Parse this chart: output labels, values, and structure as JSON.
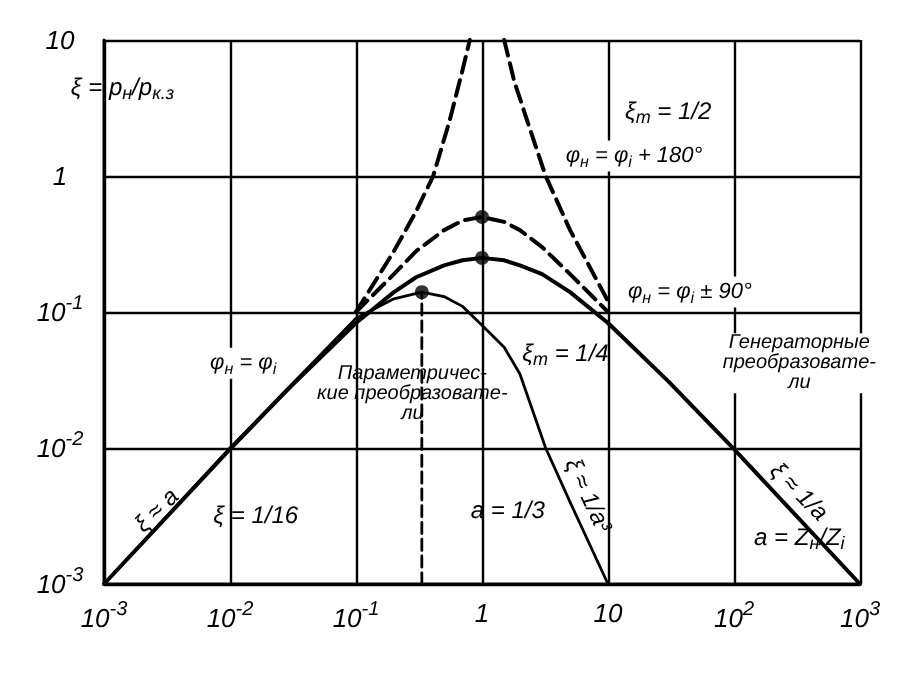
{
  "chart_data": {
    "type": "line",
    "log": "xy",
    "grid": true,
    "legend": false,
    "marker": "none",
    "xlim": [
      0.001,
      1000
    ],
    "ylim": [
      0.001,
      10
    ],
    "xticks": [
      {
        "value": 0.001,
        "label": "10$^{-3}$"
      },
      {
        "value": 0.01,
        "label": "10$^{-2}$"
      },
      {
        "value": 0.1,
        "label": "10$^{-1}$"
      },
      1,
      10,
      {
        "value": 100,
        "label": "10$^{2}$"
      },
      {
        "value": 1000,
        "label": "10$^{3}$"
      }
    ],
    "yticks": [
      {
        "value": 0.001,
        "label": "10$^{-3}$"
      },
      {
        "value": 0.01,
        "label": "10$^{-2}$"
      },
      {
        "value": 0.1,
        "label": "10$^{-1}$"
      },
      1,
      10
    ],
    "series": [
      {
        "name": "φ$_{н}$ = φ$_{i}$",
        "type": "line",
        "color": "#000000",
        "line_style": "solid",
        "x": [
          0.001,
          0.01,
          0.03,
          0.1,
          0.2,
          0.3,
          0.5,
          0.7,
          1,
          1.5,
          2,
          3,
          5,
          10,
          30,
          100,
          1000
        ],
        "values": [
          0.001,
          0.0098,
          0.028,
          0.083,
          0.14,
          0.18,
          0.22,
          0.24,
          0.25,
          0.24,
          0.22,
          0.19,
          0.14,
          0.083,
          0.031,
          0.0098,
          0.001
        ]
      },
      {
        "name": "φ$_{н}$ = φ$_{i}$ ± 90°",
        "type": "line",
        "color": "#000000",
        "line_style": "dashed",
        "x": [
          0.1,
          0.2,
          0.3,
          0.5,
          0.7,
          1,
          1.5,
          2,
          3,
          5,
          10
        ],
        "values": [
          0.1,
          0.19,
          0.28,
          0.4,
          0.47,
          0.5,
          0.46,
          0.4,
          0.3,
          0.19,
          0.1
        ]
      },
      {
        "name": "φ$_{н}$ = φ$_{i}$ + 180°",
        "type": "line",
        "color": "#000000",
        "line_style": "dashed",
        "x": [
          0.1,
          0.2,
          0.3,
          0.41,
          0.55,
          0.7,
          0.8,
          1,
          1.5,
          1.8,
          2.3,
          3.2,
          5,
          10
        ],
        "values": [
          0.1,
          0.28,
          0.55,
          1,
          2.5,
          6,
          10,
          null,
          10,
          5,
          2.5,
          1,
          0.4,
          0.12
        ]
      },
      {
        "type": "line",
        "color": "#000000",
        "line_style": "solid",
        "x": [
          0.001,
          0.01,
          0.1,
          0.2,
          0.333,
          0.5,
          0.7,
          1,
          1.5,
          2,
          3.2,
          5,
          10
        ],
        "values": [
          0.001,
          0.01,
          0.09,
          0.125,
          0.14,
          0.13,
          0.11,
          0.08,
          0.055,
          0.035,
          0.01,
          0.004,
          0.001
        ]
      },
      {
        "type": "line",
        "color": "#000000",
        "line_style": "dashed",
        "x": [
          0.333,
          0.333
        ],
        "values": [
          0.001,
          0.14
        ]
      },
      {
        "type": "scatter",
        "color": "#000000",
        "marker": "circle",
        "x": [
          0.333,
          1,
          1
        ],
        "values": [
          0.14,
          0.25,
          0.5
        ]
      }
    ],
    "annotations": [
      "ξ = p$_{н}$/p$_{к.з}$",
      "ξ$_{m}$ = 1/2",
      "ξ$_{m}$ = 1/4",
      "Параметричес-\nкие преобразовате-\nли",
      "Генераторные\nпреобразовате-\nли",
      "ξ ≈ a",
      "ξ = 1/16",
      "a = 1/3",
      "ξ ≈ 1/a³",
      "ξ ≈ 1/a",
      "a = Z$_{н}$/Z$_{i}$"
    ]
  }
}
